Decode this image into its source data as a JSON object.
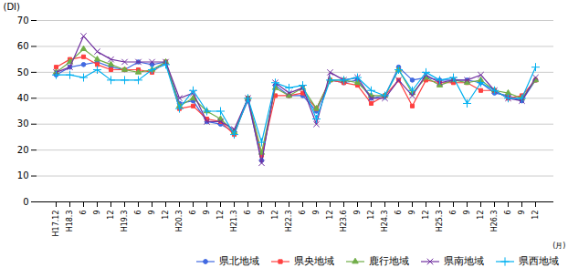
{
  "chart_data": {
    "type": "line",
    "y_label": "(DI)",
    "x_label": "(月)",
    "categories": [
      "H17.12",
      "H18.3",
      "6",
      "9",
      "12",
      "H19.3",
      "6",
      "9",
      "12",
      "H20.3",
      "6",
      "9",
      "12",
      "H21.3",
      "6",
      "9",
      "12",
      "H22.3",
      "6",
      "9",
      "12",
      "H23.6",
      "9",
      "12",
      "H24.3",
      "6",
      "9",
      "12",
      "H25.3",
      "6",
      "9",
      "12",
      "H26.3",
      "6",
      "9",
      "12"
    ],
    "series": [
      {
        "name": "県北地域",
        "color": "#4169E1",
        "marker": "circle",
        "values": [
          49,
          52,
          53,
          54,
          52,
          51,
          54,
          53,
          54,
          38,
          39,
          31,
          30,
          27,
          39,
          16,
          45,
          41,
          41,
          35,
          47,
          46,
          47,
          40,
          41,
          52,
          47,
          48,
          47,
          47,
          47,
          46,
          42,
          41,
          39,
          47
        ]
      },
      {
        "name": "県央地域",
        "color": "#FF4040",
        "marker": "square",
        "values": [
          52,
          55,
          56,
          53,
          51,
          51,
          51,
          50,
          54,
          36,
          37,
          32,
          31,
          26,
          40,
          18,
          41,
          41,
          42,
          36,
          47,
          46,
          45,
          38,
          41,
          47,
          37,
          47,
          46,
          46,
          46,
          43,
          43,
          40,
          41,
          47
        ]
      },
      {
        "name": "鹿行地域",
        "color": "#70AD47",
        "marker": "triangle",
        "values": [
          50,
          54,
          59,
          55,
          53,
          51,
          50,
          51,
          54,
          37,
          40,
          35,
          32,
          27,
          40,
          19,
          44,
          41,
          44,
          36,
          47,
          47,
          46,
          41,
          41,
          51,
          42,
          48,
          45,
          47,
          46,
          47,
          43,
          42,
          40,
          47
        ]
      },
      {
        "name": "県南地域",
        "color": "#7030A0",
        "marker": "x",
        "values": [
          50,
          52,
          64,
          58,
          55,
          54,
          54,
          54,
          54,
          40,
          42,
          31,
          31,
          28,
          40,
          15,
          46,
          42,
          44,
          30,
          50,
          47,
          48,
          40,
          40,
          47,
          41,
          49,
          46,
          47,
          47,
          49,
          43,
          40,
          39,
          48
        ]
      },
      {
        "name": "県西地域",
        "color": "#00B0F0",
        "marker": "plus",
        "values": [
          49,
          49,
          48,
          51,
          47,
          47,
          47,
          51,
          53,
          36,
          43,
          35,
          35,
          26,
          40,
          23,
          46,
          44,
          45,
          32,
          47,
          47,
          48,
          43,
          41,
          51,
          43,
          50,
          47,
          48,
          38,
          46,
          43,
          40,
          40,
          52
        ]
      }
    ],
    "ylim": [
      0,
      70
    ],
    "yticks": [
      0,
      10,
      20,
      30,
      40,
      50,
      60,
      70
    ],
    "grid": true,
    "legend": "lower right"
  }
}
